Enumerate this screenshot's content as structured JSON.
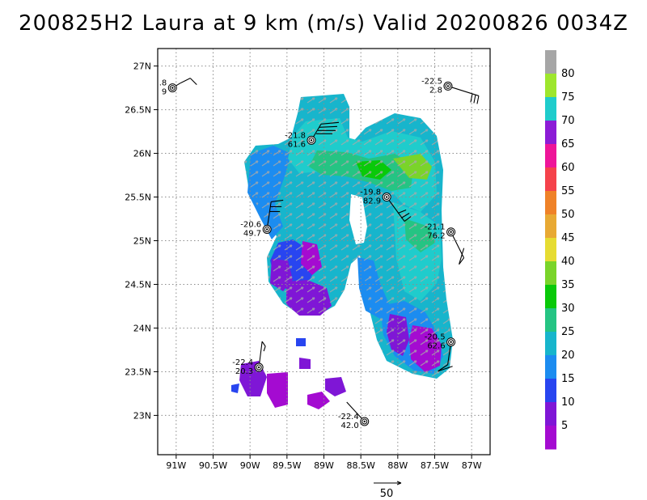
{
  "title": "200825H2 Laura at 9 km (m/s) Valid 20200826 0034Z",
  "map": {
    "lon_range": [
      -91.25,
      -86.75
    ],
    "lat_range": [
      22.55,
      27.2
    ],
    "x_ticks": [
      "91W",
      "90.5W",
      "90W",
      "89.5W",
      "89W",
      "88.5W",
      "88W",
      "87.5W",
      "87W"
    ],
    "y_ticks": [
      "27N",
      "26.5N",
      "26N",
      "25.5N",
      "25N",
      "24.5N",
      "24N",
      "23.5N",
      "23N"
    ],
    "grid": true
  },
  "colorbar": {
    "labels": [
      "80",
      "75",
      "70",
      "65",
      "60",
      "55",
      "50",
      "45",
      "40",
      "35",
      "30",
      "25",
      "20",
      "15",
      "10",
      "5"
    ],
    "colors": [
      "#a6a6a6",
      "#9ee62d",
      "#1fcccc",
      "#8c1cd6",
      "#ee1599",
      "#f5424b",
      "#ef8228",
      "#e8a933",
      "#e6dc32",
      "#7ad42a",
      "#09c909",
      "#25c483",
      "#17b5cc",
      "#1c8cf0",
      "#2845f0",
      "#7f16d6",
      "#a40bd1"
    ]
  },
  "stations": [
    {
      "id": "st-nw",
      "lon": -91.05,
      "lat": 26.75,
      "line1": ".8",
      "line2": "9"
    },
    {
      "id": "st-ne",
      "lon": -87.32,
      "lat": 26.77,
      "line1": "-22.5",
      "line2": "2.8"
    },
    {
      "id": "st-n",
      "lon": -89.17,
      "lat": 26.15,
      "line1": "-21.8",
      "line2": "61.6"
    },
    {
      "id": "st-c",
      "lon": -88.15,
      "lat": 25.5,
      "line1": "-19.8",
      "line2": "82.9"
    },
    {
      "id": "st-w",
      "lon": -89.77,
      "lat": 25.13,
      "line1": "-20.6",
      "line2": "49.7"
    },
    {
      "id": "st-e",
      "lon": -87.28,
      "lat": 25.1,
      "line1": "-21.1",
      "line2": "76.2"
    },
    {
      "id": "st-se",
      "lon": -87.28,
      "lat": 23.84,
      "line1": "-20.5",
      "line2": "62.6"
    },
    {
      "id": "st-sw",
      "lon": -89.88,
      "lat": 23.55,
      "line1": "-22.4",
      "line2": "20.3"
    },
    {
      "id": "st-s",
      "lon": -88.45,
      "lat": 22.93,
      "line1": "-22.4",
      "line2": "42.0"
    }
  ],
  "reference_vector": {
    "label": "50"
  }
}
